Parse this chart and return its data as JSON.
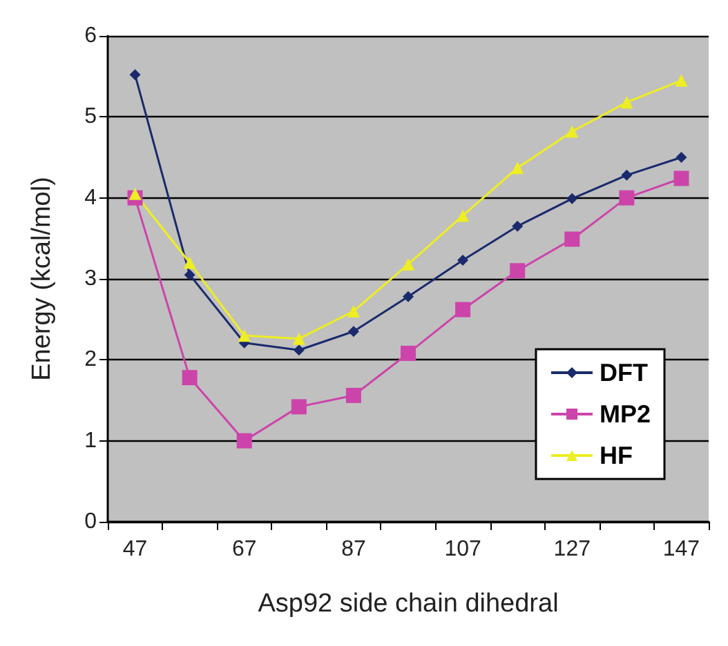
{
  "chart_data": {
    "type": "line",
    "xlabel": "Asp92 side chain dihedral",
    "ylabel": "Energy (kcal/mol)",
    "categories": [
      "47",
      null,
      "67",
      null,
      "87",
      null,
      "107",
      null,
      "127",
      null,
      "147"
    ],
    "ylim": [
      0,
      6
    ],
    "yticks": [
      0,
      1,
      2,
      3,
      4,
      5,
      6
    ],
    "grid": "y",
    "legend": "right",
    "series": [
      {
        "name": "DFT",
        "color": "#1a2a6c",
        "marker": "diamond",
        "values": [
          5.52,
          3.05,
          2.21,
          2.12,
          2.35,
          2.78,
          3.23,
          3.65,
          3.99,
          4.28,
          4.5
        ]
      },
      {
        "name": "MP2",
        "color": "#cc44aa",
        "marker": "square",
        "values": [
          4.0,
          1.78,
          1.0,
          1.42,
          1.56,
          2.08,
          2.62,
          3.1,
          3.49,
          4.0,
          4.24
        ]
      },
      {
        "name": "HF",
        "color": "#eeee22",
        "marker": "triangle",
        "values": [
          4.05,
          3.2,
          2.3,
          2.26,
          2.6,
          3.18,
          3.78,
          4.37,
          4.82,
          5.18,
          5.45
        ]
      }
    ]
  }
}
